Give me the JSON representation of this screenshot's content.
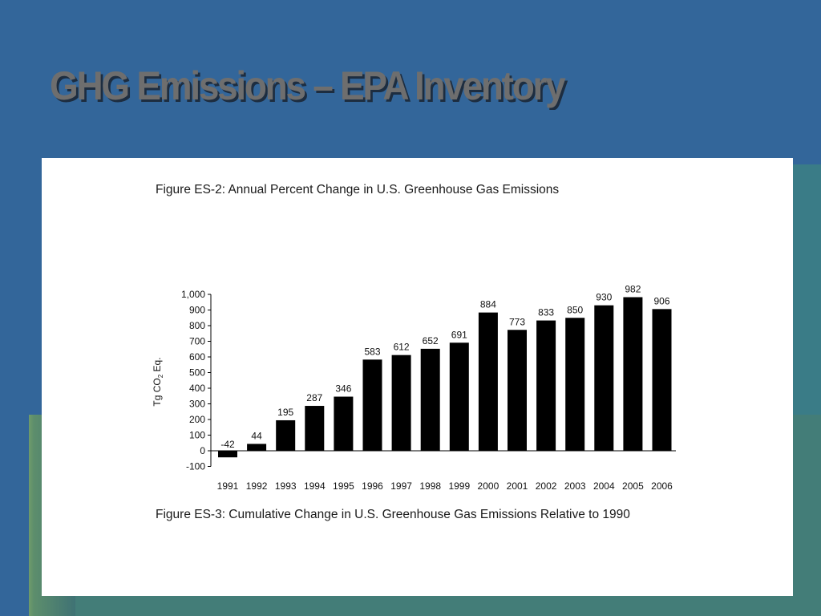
{
  "slide": {
    "title": "GHG Emissions – EPA Inventory",
    "background_color": "#33669a"
  },
  "figure_top": {
    "caption": "Figure ES-2:  Annual Percent Change in U.S. Greenhouse Gas Emissions"
  },
  "figure_bottom": {
    "caption": "Figure ES-3:  Cumulative Change in U.S. Greenhouse Gas Emissions Relative to 1990"
  },
  "chart_data": {
    "type": "bar",
    "title": "",
    "xlabel": "",
    "ylabel": "Tg CO2 Eq.",
    "ylabel_main": "Tg CO",
    "ylabel_sub": "2",
    "ylabel_tail": " Eq.",
    "categories": [
      "1991",
      "1992",
      "1993",
      "1994",
      "1995",
      "1996",
      "1997",
      "1998",
      "1999",
      "2000",
      "2001",
      "2002",
      "2003",
      "2004",
      "2005",
      "2006"
    ],
    "values": [
      -42,
      44,
      195,
      287,
      346,
      583,
      612,
      652,
      691,
      884,
      773,
      833,
      850,
      930,
      982,
      906
    ],
    "data_labels": [
      "-42",
      "44",
      "195",
      "287",
      "346",
      "583",
      "612",
      "652",
      "691",
      "884",
      "773",
      "833",
      "850",
      "930",
      "982",
      "906"
    ],
    "ylim": [
      -100,
      1000
    ],
    "yticks": [
      -100,
      0,
      100,
      200,
      300,
      400,
      500,
      600,
      700,
      800,
      900,
      1000
    ],
    "ytick_labels": [
      "-100",
      "0",
      "100",
      "200",
      "300",
      "400",
      "500",
      "600",
      "700",
      "800",
      "900",
      "1,000"
    ],
    "grid": false,
    "bar_color": "#000000"
  }
}
